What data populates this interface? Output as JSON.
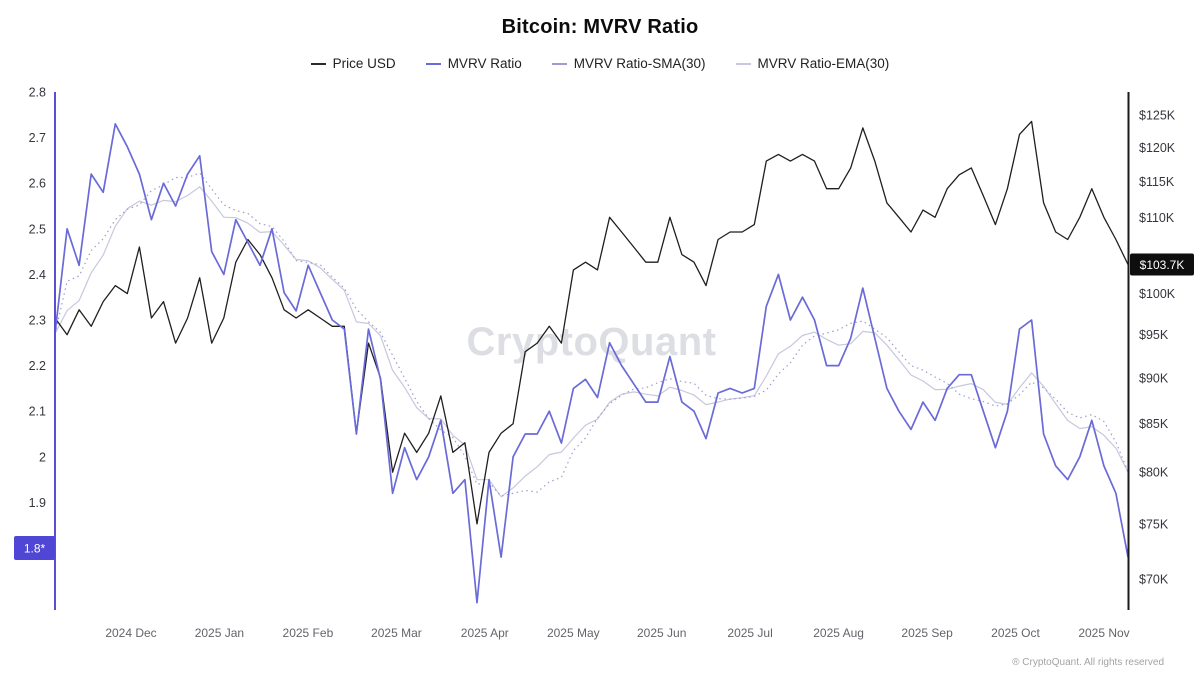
{
  "title": "Bitcoin: MVRV Ratio",
  "watermark": "CryptoQuant",
  "footer": "® CryptoQuant. All rights reserved",
  "legend": {
    "items": [
      {
        "label": "Price USD",
        "color": "#2b2b2b"
      },
      {
        "label": "MVRV Ratio",
        "color": "#6a6ad8"
      },
      {
        "label": "MVRV Ratio-SMA(30)",
        "color": "#9d9dcc"
      },
      {
        "label": "MVRV Ratio-EMA(30)",
        "color": "#c7c7df"
      }
    ]
  },
  "axes": {
    "left": {
      "series": "MVRV Ratio",
      "ticks": [
        {
          "label": "2.8",
          "value": 2.8
        },
        {
          "label": "2.7",
          "value": 2.7
        },
        {
          "label": "2.6",
          "value": 2.6
        },
        {
          "label": "2.5",
          "value": 2.5
        },
        {
          "label": "2.4",
          "value": 2.4
        },
        {
          "label": "2.3",
          "value": 2.3
        },
        {
          "label": "2.2",
          "value": 2.2
        },
        {
          "label": "2.1",
          "value": 2.1
        },
        {
          "label": "2",
          "value": 2.0
        },
        {
          "label": "1.9",
          "value": 1.9
        }
      ],
      "badge": {
        "label": "1.8*",
        "value": 1.8,
        "color": "#4f46d6"
      }
    },
    "right": {
      "series": "Price USD",
      "scale": "log",
      "ticks": [
        {
          "label": "$125K",
          "value": 125
        },
        {
          "label": "$120K",
          "value": 120
        },
        {
          "label": "$115K",
          "value": 115
        },
        {
          "label": "$110K",
          "value": 110
        },
        {
          "label": "$100K",
          "value": 100
        },
        {
          "label": "$95K",
          "value": 95
        },
        {
          "label": "$90K",
          "value": 90
        },
        {
          "label": "$85K",
          "value": 85
        },
        {
          "label": "$80K",
          "value": 80
        },
        {
          "label": "$75K",
          "value": 75
        },
        {
          "label": "$70K",
          "value": 70
        }
      ],
      "badge": {
        "label": "$103.7K",
        "value": 103.7,
        "color": "#0e0e0e"
      }
    },
    "x": {
      "labels": [
        "2024 Dec",
        "2025 Jan",
        "2025 Feb",
        "2025 Mar",
        "2025 Apr",
        "2025 May",
        "2025 Jun",
        "2025 Jul",
        "2025 Aug",
        "2025 Sep",
        "2025 Oct",
        "2025 Nov"
      ]
    }
  },
  "chart_data": {
    "type": "line",
    "x_range": [
      "2024 Nov",
      "2025 Nov"
    ],
    "points_interval_days": 4,
    "grid": false,
    "legend_position": "top",
    "left_axis_range": [
      1.664,
      2.8
    ],
    "right_axis_range_k_usd": [
      67.4,
      128.7
    ],
    "series": [
      {
        "name": "Price USD",
        "axis": "right",
        "unit": "USD thousands",
        "color": "#1f1f1f",
        "values": [
          97,
          95,
          98,
          96,
          99,
          101,
          100,
          106,
          97,
          99,
          94,
          97,
          102,
          94,
          97,
          104,
          107,
          105,
          102,
          98,
          97,
          98,
          97,
          96,
          96,
          84,
          94,
          90,
          80,
          84,
          82,
          84,
          88,
          82,
          83,
          75,
          82,
          84,
          85,
          93,
          94,
          96,
          94,
          103,
          104,
          103,
          110,
          108,
          106,
          104,
          104,
          110,
          105,
          104,
          101,
          107,
          108,
          108,
          109,
          118,
          119,
          118,
          119,
          118,
          114,
          114,
          117,
          123,
          118,
          112,
          110,
          108,
          111,
          110,
          114,
          116,
          117,
          113,
          109,
          114,
          122,
          124,
          112,
          108,
          107,
          110,
          114,
          110,
          107,
          103.7
        ]
      },
      {
        "name": "MVRV Ratio",
        "axis": "left",
        "color": "#6a6ad8",
        "values": [
          2.27,
          2.5,
          2.42,
          2.62,
          2.58,
          2.73,
          2.68,
          2.62,
          2.52,
          2.6,
          2.55,
          2.62,
          2.66,
          2.45,
          2.4,
          2.52,
          2.47,
          2.42,
          2.5,
          2.36,
          2.32,
          2.42,
          2.36,
          2.3,
          2.28,
          2.05,
          2.28,
          2.17,
          1.92,
          2.02,
          1.95,
          2.0,
          2.08,
          1.92,
          1.95,
          1.68,
          1.95,
          1.78,
          2.0,
          2.05,
          2.05,
          2.1,
          2.03,
          2.15,
          2.17,
          2.13,
          2.25,
          2.2,
          2.16,
          2.12,
          2.12,
          2.22,
          2.12,
          2.1,
          2.04,
          2.14,
          2.15,
          2.14,
          2.15,
          2.33,
          2.4,
          2.3,
          2.35,
          2.3,
          2.2,
          2.2,
          2.26,
          2.37,
          2.26,
          2.15,
          2.1,
          2.06,
          2.12,
          2.08,
          2.15,
          2.18,
          2.18,
          2.1,
          2.02,
          2.1,
          2.28,
          2.3,
          2.05,
          1.98,
          1.95,
          2.0,
          2.08,
          1.98,
          1.92,
          1.78
        ]
      },
      {
        "name": "MVRV Ratio-SMA(30)",
        "axis": "left",
        "color": "#9d9dcc",
        "style": "dotted",
        "derived_from": "MVRV Ratio",
        "window_points": 8
      },
      {
        "name": "MVRV Ratio-EMA(30)",
        "axis": "left",
        "color": "#c7c7df",
        "style": "solid",
        "derived_from": "MVRV Ratio",
        "alpha": 0.22
      }
    ]
  }
}
